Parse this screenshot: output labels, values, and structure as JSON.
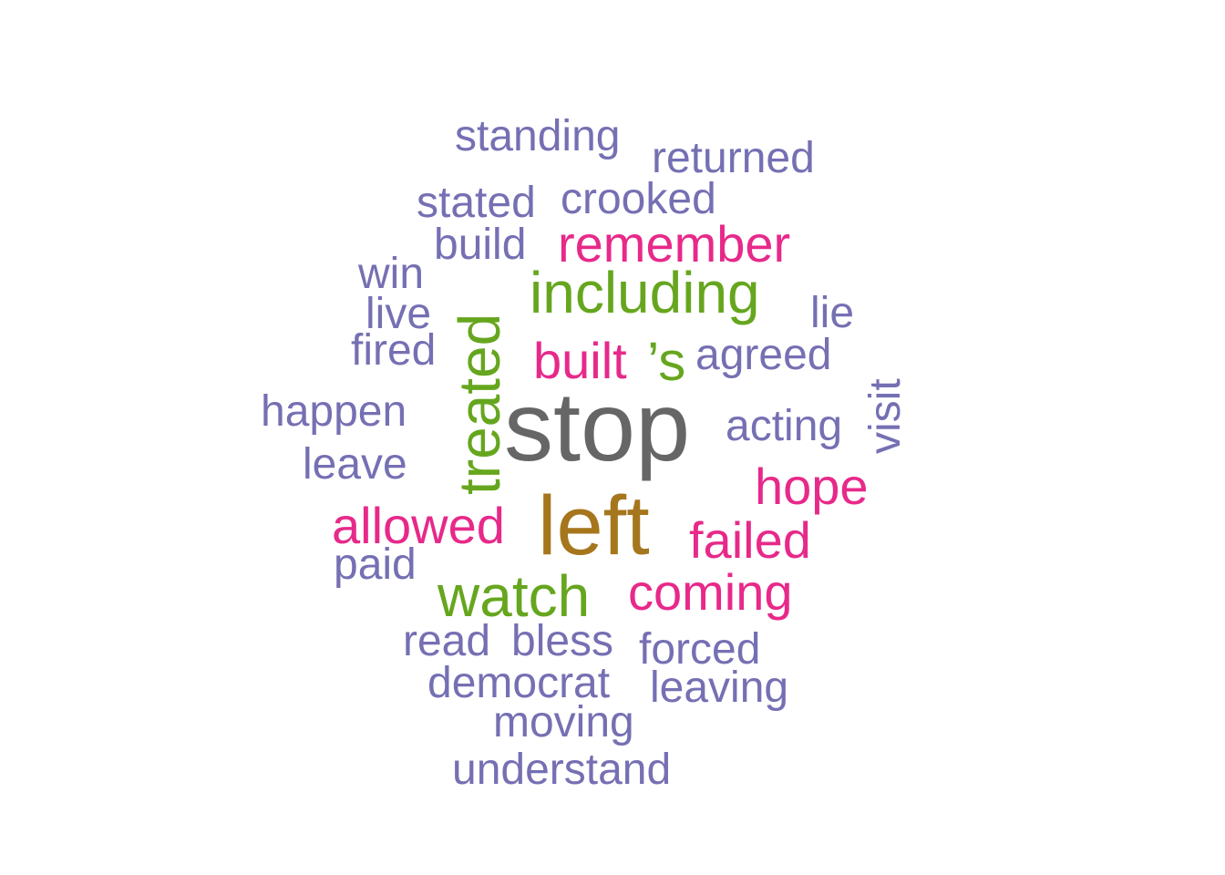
{
  "chart_data": {
    "type": "wordcloud",
    "colors": {
      "gray": "#666666",
      "gold": "#A6761D",
      "green": "#66A61E",
      "magenta": "#E7298A",
      "purple": "#7570B3"
    },
    "words": [
      {
        "text": "stop",
        "color": "gray",
        "rotated": false
      },
      {
        "text": "left",
        "color": "gold",
        "rotated": false
      },
      {
        "text": "treated",
        "color": "green",
        "rotated": true
      },
      {
        "text": "including",
        "color": "green",
        "rotated": false
      },
      {
        "text": "watch",
        "color": "green",
        "rotated": false
      },
      {
        "text": "’s",
        "color": "green",
        "rotated": false
      },
      {
        "text": "remember",
        "color": "magenta",
        "rotated": false
      },
      {
        "text": "built",
        "color": "magenta",
        "rotated": false
      },
      {
        "text": "hope",
        "color": "magenta",
        "rotated": false
      },
      {
        "text": "allowed",
        "color": "magenta",
        "rotated": false
      },
      {
        "text": "failed",
        "color": "magenta",
        "rotated": false
      },
      {
        "text": "coming",
        "color": "magenta",
        "rotated": false
      },
      {
        "text": "standing",
        "color": "purple",
        "rotated": false
      },
      {
        "text": "returned",
        "color": "purple",
        "rotated": false
      },
      {
        "text": "stated",
        "color": "purple",
        "rotated": false
      },
      {
        "text": "crooked",
        "color": "purple",
        "rotated": false
      },
      {
        "text": "build",
        "color": "purple",
        "rotated": false
      },
      {
        "text": "win",
        "color": "purple",
        "rotated": false
      },
      {
        "text": "live",
        "color": "purple",
        "rotated": false
      },
      {
        "text": "lie",
        "color": "purple",
        "rotated": false
      },
      {
        "text": "fired",
        "color": "purple",
        "rotated": false
      },
      {
        "text": "agreed",
        "color": "purple",
        "rotated": false
      },
      {
        "text": "happen",
        "color": "purple",
        "rotated": false
      },
      {
        "text": "acting",
        "color": "purple",
        "rotated": false
      },
      {
        "text": "visit",
        "color": "purple",
        "rotated": true
      },
      {
        "text": "leave",
        "color": "purple",
        "rotated": false
      },
      {
        "text": "paid",
        "color": "purple",
        "rotated": false
      },
      {
        "text": "read",
        "color": "purple",
        "rotated": false
      },
      {
        "text": "bless",
        "color": "purple",
        "rotated": false
      },
      {
        "text": "forced",
        "color": "purple",
        "rotated": false
      },
      {
        "text": "democrat",
        "color": "purple",
        "rotated": false
      },
      {
        "text": "leaving",
        "color": "purple",
        "rotated": false
      },
      {
        "text": "moving",
        "color": "purple",
        "rotated": false
      },
      {
        "text": "understand",
        "color": "purple",
        "rotated": false
      }
    ]
  }
}
